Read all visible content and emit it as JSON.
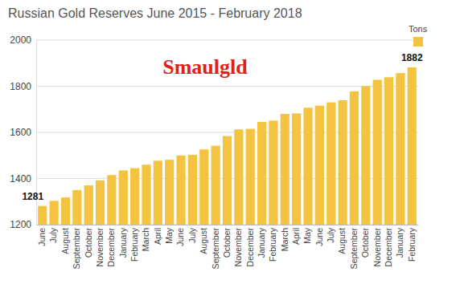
{
  "chart_data": {
    "type": "bar",
    "title": "Russian Gold Reserves June 2015 - February 2018",
    "annotations": [
      "Smaulgld"
    ],
    "categories": [
      "June",
      "July",
      "August",
      "September",
      "October",
      "November",
      "December",
      "January",
      "February",
      "March",
      "April",
      "May",
      "June",
      "July",
      "August",
      "September",
      "October",
      "November",
      "December",
      "January",
      "February",
      "March",
      "April",
      "May",
      "June",
      "July",
      "August",
      "September",
      "October",
      "November",
      "December",
      "January",
      "February"
    ],
    "series": [
      {
        "name": "Tons",
        "color": "#f4c33f",
        "values": [
          1281,
          1303,
          1318,
          1350,
          1370,
          1392,
          1415,
          1435,
          1445,
          1460,
          1477,
          1481,
          1500,
          1503,
          1526,
          1542,
          1584,
          1613,
          1615,
          1645,
          1651,
          1680,
          1682,
          1707,
          1716,
          1730,
          1739,
          1778,
          1801,
          1828,
          1839,
          1857,
          1882
        ],
        "value_labels": [
          "1281",
          null,
          null,
          null,
          null,
          null,
          null,
          null,
          null,
          null,
          null,
          null,
          null,
          null,
          null,
          null,
          null,
          null,
          null,
          null,
          null,
          null,
          null,
          null,
          null,
          null,
          null,
          null,
          null,
          null,
          null,
          null,
          "1882"
        ]
      }
    ],
    "ylim": [
      1200,
      2000
    ],
    "yticks": [
      1200,
      1400,
      1600,
      1800,
      2000
    ],
    "grid": true,
    "legend": "top-right",
    "data_labels": true
  }
}
